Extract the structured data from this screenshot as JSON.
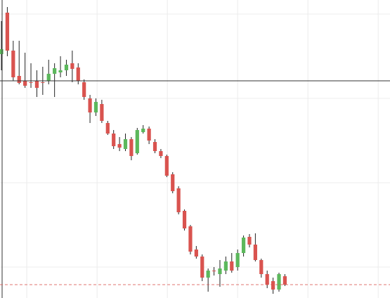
{
  "chart_data": {
    "type": "candlestick",
    "x": [
      0,
      1,
      2,
      3,
      4,
      5,
      6,
      7,
      8,
      9,
      10,
      11,
      12,
      13,
      14,
      15,
      16,
      17,
      18,
      19,
      20,
      21,
      22,
      23,
      24,
      25,
      26,
      27,
      28,
      29,
      30,
      31,
      32,
      33,
      34,
      35,
      36,
      37,
      38,
      39,
      40,
      41,
      42,
      43,
      44,
      45,
      46,
      47,
      48
    ],
    "open": [
      347,
      406,
      352,
      316,
      309,
      307,
      309,
      307,
      309,
      319,
      321,
      324,
      334,
      328,
      307,
      284,
      264,
      276,
      249,
      234,
      219,
      212,
      226,
      206,
      236,
      241,
      222,
      209,
      202,
      176,
      156,
      124,
      102,
      69,
      59,
      29,
      39,
      34,
      39,
      52,
      44,
      64,
      87,
      76,
      54,
      34,
      24,
      12,
      31
    ],
    "high": [
      394,
      414,
      366,
      366,
      349,
      334,
      324,
      329,
      339,
      334,
      344,
      339,
      352,
      334,
      311,
      289,
      284,
      282,
      252,
      239,
      229,
      234,
      229,
      242,
      246,
      244,
      226,
      212,
      204,
      179,
      159,
      126,
      104,
      74,
      62,
      42,
      44,
      54,
      59,
      64,
      69,
      89,
      91,
      92,
      56,
      39,
      29,
      36,
      34
    ],
    "low": [
      324,
      344,
      309,
      304,
      299,
      299,
      286,
      289,
      304,
      286,
      314,
      316,
      307,
      304,
      282,
      249,
      259,
      249,
      232,
      212,
      209,
      209,
      196,
      204,
      234,
      219,
      206,
      199,
      172,
      149,
      119,
      96,
      62,
      56,
      24,
      9,
      32,
      16,
      34,
      36,
      39,
      59,
      72,
      52,
      29,
      14,
      6,
      9,
      17
    ],
    "close": [
      354,
      352,
      314,
      306,
      302,
      306,
      299,
      306,
      319,
      327,
      324,
      332,
      326,
      309,
      286,
      264,
      279,
      252,
      234,
      216,
      214,
      226,
      202,
      239,
      241,
      224,
      209,
      202,
      174,
      152,
      122,
      99,
      66,
      59,
      29,
      39,
      38,
      42,
      52,
      39,
      64,
      86,
      76,
      54,
      34,
      19,
      12,
      34,
      19
    ],
    "up_color": "#5cb85c",
    "down_color": "#d9534f",
    "xlim": [
      -0.24,
      65.8
    ],
    "xticks": [
      4.29,
      16.2,
      28.1,
      40,
      51.9,
      63.8
    ],
    "ylim": [
      0,
      424
    ],
    "yticks": [
      44,
      164,
      284,
      404
    ],
    "grid": true
  }
}
